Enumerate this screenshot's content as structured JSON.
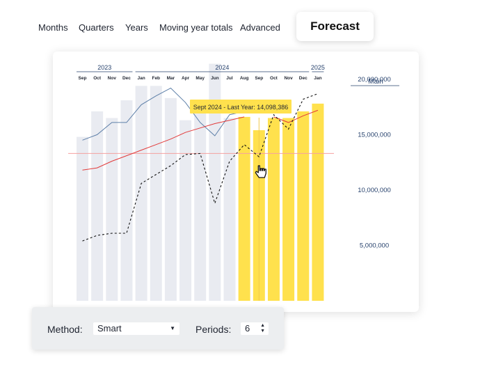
{
  "tabs": {
    "items": [
      "Months",
      "Quarters",
      "Years",
      "Moving year totals",
      "Advanced"
    ],
    "active": "Forecast"
  },
  "controls": {
    "method_label": "Method:",
    "method_value": "Smart",
    "periods_label": "Periods:",
    "periods_value": "6"
  },
  "colors": {
    "actual_bar": "#e9ebf1",
    "forecast_bar": "#ffe14d",
    "blue_line": "#5d7fa8",
    "red_line": "#e23a3a",
    "tooltip": "#ffe14d",
    "axis_text": "#27426d"
  },
  "chart_data": {
    "type": "bar",
    "years": [
      {
        "label": "2023",
        "from": 0,
        "to": 3
      },
      {
        "label": "2024",
        "from": 4,
        "to": 15
      },
      {
        "label": "2025",
        "from": 16,
        "to": 16
      }
    ],
    "categories": [
      "Sep",
      "Oct",
      "Nov",
      "Dec",
      "Jan",
      "Feb",
      "Mar",
      "Apr",
      "May",
      "Jun",
      "Jul",
      "Aug",
      "Sep",
      "Oct",
      "Nov",
      "Dec",
      "Jan"
    ],
    "axis_title": "Main",
    "y_ticks": [
      "20,000,000",
      "15,000,000",
      "10,000,000",
      "5,000,000"
    ],
    "y_tick_values": [
      20000000,
      15000000,
      10000000,
      5000000
    ],
    "ylim": [
      0,
      22000000
    ],
    "bars": {
      "values": [
        14800000,
        17100000,
        16500000,
        18100000,
        19400000,
        19400000,
        18300000,
        16300000,
        17300000,
        21400000,
        16500000,
        16600000,
        15400000,
        16500000,
        16500000,
        17100000,
        17800000
      ],
      "forecast_from_index": 11
    },
    "series": [
      {
        "style": "solid-blue",
        "points": [
          [
            0,
            14500000
          ],
          [
            1,
            15000000
          ],
          [
            2,
            16100000
          ],
          [
            3,
            16100000
          ],
          [
            4,
            17700000
          ],
          [
            5,
            18500000
          ],
          [
            6,
            19200000
          ],
          [
            7,
            17900000
          ],
          [
            8,
            16100000
          ],
          [
            9,
            14900000
          ],
          [
            10,
            16800000
          ],
          [
            11,
            17100000
          ]
        ]
      },
      {
        "style": "solid-red",
        "points": [
          [
            0,
            11800000
          ],
          [
            1,
            12000000
          ],
          [
            2,
            12600000
          ],
          [
            3,
            13100000
          ],
          [
            4,
            13600000
          ],
          [
            5,
            14100000
          ],
          [
            6,
            14600000
          ],
          [
            7,
            15200000
          ],
          [
            8,
            15600000
          ],
          [
            9,
            16000000
          ],
          [
            10,
            16300000
          ],
          [
            11,
            16600000
          ]
        ]
      },
      {
        "style": "solid-red",
        "points": [
          [
            13,
            16600000
          ],
          [
            14,
            16100000
          ],
          [
            15,
            16700000
          ],
          [
            16,
            17200000
          ]
        ]
      },
      {
        "style": "dashed-black",
        "points": [
          [
            0,
            5400000
          ],
          [
            1,
            5900000
          ],
          [
            2,
            6100000
          ],
          [
            3,
            6100000
          ],
          [
            4,
            10600000
          ],
          [
            5,
            11400000
          ],
          [
            6,
            12200000
          ],
          [
            7,
            13200000
          ],
          [
            8,
            13300000
          ],
          [
            9,
            8800000
          ],
          [
            10,
            12600000
          ],
          [
            11,
            14100000
          ],
          [
            12,
            13000000
          ],
          [
            13,
            16800000
          ],
          [
            14,
            15500000
          ],
          [
            15,
            18200000
          ],
          [
            16,
            18700000
          ]
        ]
      }
    ],
    "reference_line": 13300000,
    "highlight_index": 12,
    "tooltip": "Sept 2024 - Last Year: 14,098,386"
  }
}
